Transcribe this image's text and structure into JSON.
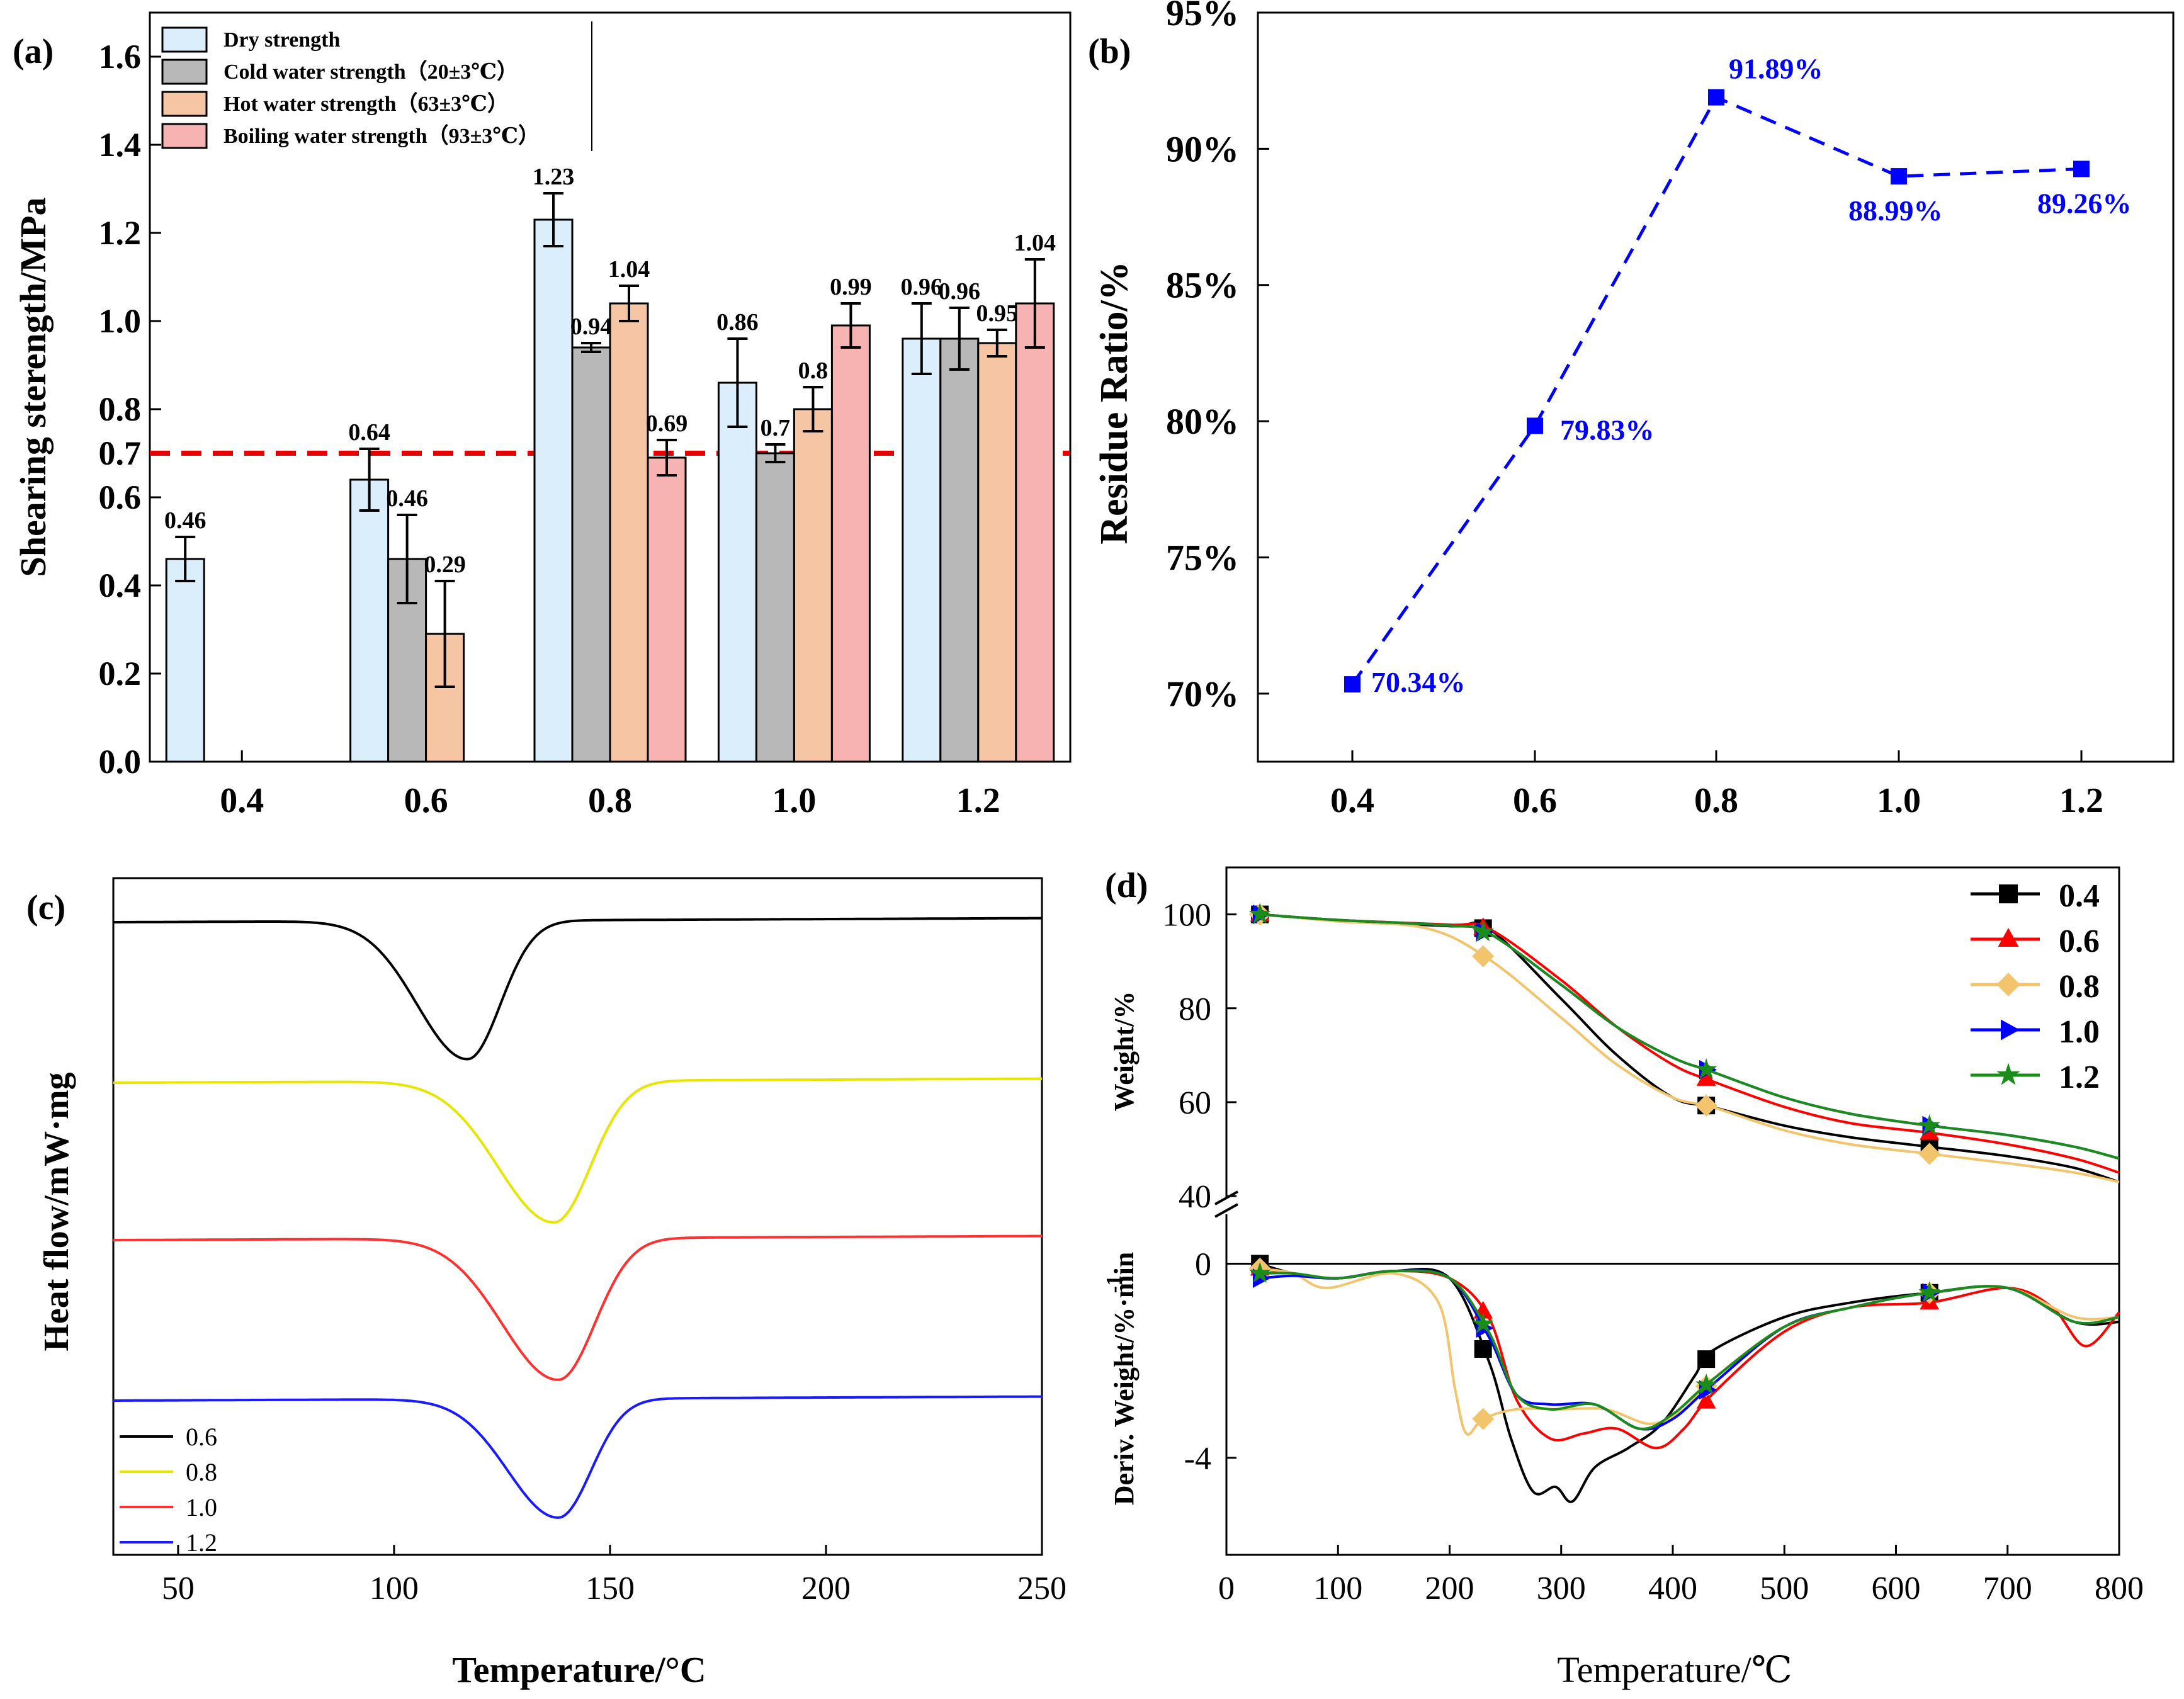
{
  "chart_data": [
    {
      "panel": "(a)",
      "type": "bar",
      "ylabel": "Shearing sterength/MPa",
      "xlabel": "",
      "ylim": [
        0,
        1.7
      ],
      "yticks": [
        "0.0",
        "0.2",
        "0.4",
        "0.6",
        "0.7",
        "0.8",
        "1.0",
        "1.2",
        "1.4",
        "1.6"
      ],
      "categories": [
        "0.4",
        "0.6",
        "0.8",
        "1.0",
        "1.2"
      ],
      "reference_line": {
        "value": 0.7,
        "color": "#e60000",
        "style": "dashed"
      },
      "series": [
        {
          "name": "Dry strength",
          "color": "#dbeefb",
          "values": [
            0.46,
            0.64,
            1.23,
            0.86,
            0.96
          ],
          "errors": [
            0.05,
            0.07,
            0.06,
            0.1,
            0.08
          ],
          "labels": [
            "0.46",
            "0.64",
            "1.23",
            "0.86",
            "0.96"
          ]
        },
        {
          "name": "Cold water strength（20±3℃）",
          "color": "#b8b8b8",
          "values": [
            null,
            0.46,
            0.94,
            0.7,
            0.96
          ],
          "errors": [
            null,
            0.1,
            0.01,
            0.02,
            0.07
          ],
          "labels": [
            "",
            "0.46",
            "0.94",
            "0.7",
            "0.96"
          ]
        },
        {
          "name": "Hot water strength（63±3℃）",
          "color": "#f6c5a3",
          "values": [
            null,
            0.29,
            1.04,
            0.8,
            0.95
          ],
          "errors": [
            null,
            0.12,
            0.04,
            0.05,
            0.03
          ],
          "labels": [
            "",
            "0.29",
            "1.04",
            "0.8",
            "0.95"
          ]
        },
        {
          "name": "Boiling water strength（93±3℃）",
          "color": "#f7b2b2",
          "values": [
            null,
            null,
            0.69,
            0.99,
            1.04
          ],
          "errors": [
            null,
            null,
            0.04,
            0.05,
            0.1
          ],
          "labels": [
            "",
            "",
            "0.69",
            "0.99",
            "1.04"
          ]
        }
      ]
    },
    {
      "panel": "(b)",
      "type": "line",
      "ylabel": "Residue Ratio/%",
      "xlabel": "",
      "x": [
        "0.4",
        "0.6",
        "0.8",
        "1.0",
        "1.2"
      ],
      "values": [
        70.34,
        79.83,
        91.89,
        88.99,
        89.26
      ],
      "labels": [
        "70.34%",
        "79.83%",
        "91.89%",
        "88.99%",
        "89.26%"
      ],
      "ylim": [
        67.5,
        95
      ],
      "yticks": [
        "70%",
        "75%",
        "80%",
        "85%",
        "90%",
        "95%"
      ],
      "color": "#0000ff",
      "line_style": "dashed"
    },
    {
      "panel": "(c)",
      "type": "line",
      "xlabel": "Temperature/°C",
      "ylabel": "Heat flow/mW·mg",
      "xlim": [
        35,
        250
      ],
      "xticks": [
        "50",
        "100",
        "150",
        "200",
        "250"
      ],
      "series": [
        {
          "name": "0.6",
          "color": "#000000",
          "baseline": 0,
          "peak_T": 117,
          "peak_depth": 1.0
        },
        {
          "name": "0.8",
          "color": "#e6e600",
          "baseline": 1,
          "peak_T": 137,
          "peak_depth": 1.0
        },
        {
          "name": "1.0",
          "color": "#ff3030",
          "baseline": 2,
          "peak_T": 138,
          "peak_depth": 1.0
        },
        {
          "name": "1.2",
          "color": "#1a1aff",
          "baseline": 3,
          "peak_T": 138,
          "peak_depth": 0.9
        }
      ]
    },
    {
      "panel": "(d)",
      "type": "line",
      "xlabel": "Temperature/℃",
      "xlim": [
        0,
        800
      ],
      "xticks": [
        "0",
        "100",
        "200",
        "300",
        "400",
        "500",
        "600",
        "700",
        "800"
      ],
      "top": {
        "ylabel": "Weight/%",
        "ylim": [
          38,
          110
        ],
        "yticks": [
          "40",
          "60",
          "80",
          "100"
        ],
        "series": [
          {
            "name": "0.4",
            "color": "#000000",
            "marker": "square",
            "x": [
              30,
              100,
              200,
              235,
              300,
              350,
              400,
              435,
              500,
              560,
              630,
              700,
              760,
              800
            ],
            "y": [
              100,
              98.7,
              97.5,
              97,
              82,
              70,
              61,
              59,
              55,
              52.5,
              50.5,
              48.5,
              46,
              43
            ]
          },
          {
            "name": "0.6",
            "color": "#ff0000",
            "marker": "triangle-up",
            "x": [
              30,
              100,
              200,
              235,
              300,
              350,
              400,
              435,
              500,
              560,
              630,
              700,
              760,
              800
            ],
            "y": [
              100,
              98.8,
              97.8,
              97,
              86,
              76,
              68,
              64.5,
              59,
              55.5,
              53.5,
              51,
              48,
              45
            ]
          },
          {
            "name": "0.8",
            "color": "#f2c46b",
            "marker": "diamond",
            "x": [
              30,
              100,
              180,
              235,
              300,
              350,
              400,
              435,
              500,
              560,
              630,
              700,
              760,
              800
            ],
            "y": [
              100,
              98.5,
              97,
              90.5,
              78,
              68,
              61,
              59,
              54,
              51,
              49,
              47,
              45,
              43
            ]
          },
          {
            "name": "1.0",
            "color": "#0000ff",
            "marker": "triangle-right",
            "x": [
              30,
              100,
              200,
              235,
              300,
              350,
              400,
              435,
              500,
              560,
              630,
              700,
              760,
              800
            ],
            "y": [
              100,
              98.8,
              97.6,
              96,
              85,
              76,
              69.5,
              66.5,
              61,
              57.5,
              55,
              53,
              50.5,
              48
            ]
          },
          {
            "name": "1.2",
            "color": "#1a8c1a",
            "marker": "star",
            "x": [
              30,
              100,
              200,
              235,
              300,
              350,
              400,
              435,
              500,
              560,
              630,
              700,
              760,
              800
            ],
            "y": [
              100,
              98.8,
              97.6,
              96,
              85,
              76,
              69.5,
              66.5,
              61,
              57.5,
              55,
              53,
              50.5,
              48
            ]
          }
        ]
      },
      "bottom": {
        "ylabel": "Deriv. Weight/%·min",
        "ylabel_sup": "-1",
        "ylim": [
          -6,
          1.2
        ],
        "yticks": [
          "0",
          "-4"
        ],
        "series": [
          {
            "name": "0.4",
            "color": "#000000",
            "marker": "square",
            "x": [
              30,
              60,
              100,
              150,
              200,
              235,
              255,
              275,
              295,
              310,
              330,
              360,
              390,
              420,
              435,
              500,
              560,
              630,
              700,
              760,
              800
            ],
            "y": [
              0,
              -0.2,
              -0.3,
              -0.15,
              -0.3,
              -2.0,
              -3.6,
              -4.7,
              -4.6,
              -4.9,
              -4.2,
              -3.8,
              -3.3,
              -2.3,
              -1.8,
              -1.1,
              -0.8,
              -0.6,
              -0.5,
              -1.2,
              -1.2
            ]
          },
          {
            "name": "0.6",
            "color": "#ff0000",
            "marker": "triangle-up",
            "x": [
              30,
              60,
              100,
              150,
              200,
              235,
              260,
              290,
              320,
              350,
              385,
              410,
              435,
              500,
              560,
              630,
              700,
              740,
              770,
              800
            ],
            "y": [
              -0.1,
              -0.2,
              -0.3,
              -0.15,
              -0.3,
              -1.1,
              -2.8,
              -3.6,
              -3.5,
              -3.4,
              -3.8,
              -3.4,
              -2.7,
              -1.4,
              -0.9,
              -0.8,
              -0.5,
              -0.9,
              -1.7,
              -1.0
            ]
          },
          {
            "name": "0.8",
            "color": "#f2c46b",
            "marker": "diamond",
            "x": [
              30,
              60,
              90,
              150,
              190,
              205,
              215,
              230,
              260,
              300,
              340,
              380,
              410,
              435,
              500,
              560,
              630,
              700,
              760,
              800
            ],
            "y": [
              -0.1,
              -0.2,
              -0.5,
              -0.2,
              -0.8,
              -2.6,
              -3.5,
              -3.2,
              -3.0,
              -3.0,
              -3.0,
              -3.3,
              -3.0,
              -2.4,
              -1.3,
              -0.9,
              -0.6,
              -0.5,
              -1.1,
              -1.1
            ]
          },
          {
            "name": "1.0",
            "color": "#0000ff",
            "marker": "triangle-right",
            "x": [
              30,
              60,
              100,
              150,
              200,
              235,
              260,
              290,
              330,
              370,
              400,
              435,
              500,
              560,
              630,
              700,
              760,
              800
            ],
            "y": [
              -0.3,
              -0.25,
              -0.3,
              -0.15,
              -0.3,
              -1.5,
              -2.7,
              -2.9,
              -2.9,
              -3.4,
              -3.2,
              -2.5,
              -1.3,
              -0.9,
              -0.6,
              -0.5,
              -1.2,
              -1.1
            ]
          },
          {
            "name": "1.2",
            "color": "#1a8c1a",
            "marker": "star",
            "x": [
              30,
              60,
              100,
              150,
              200,
              235,
              260,
              290,
              330,
              370,
              400,
              435,
              500,
              560,
              630,
              700,
              760,
              800
            ],
            "y": [
              -0.2,
              -0.2,
              -0.3,
              -0.15,
              -0.3,
              -1.4,
              -2.7,
              -3.0,
              -2.9,
              -3.4,
              -3.1,
              -2.4,
              -1.3,
              -0.9,
              -0.6,
              -0.5,
              -1.2,
              -1.1
            ]
          }
        ]
      }
    }
  ]
}
